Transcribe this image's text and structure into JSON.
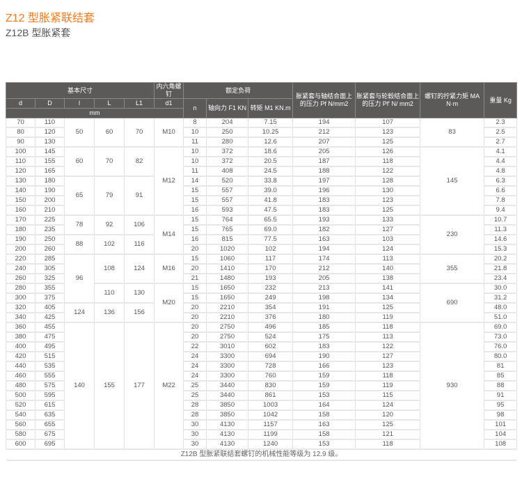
{
  "title": "Z12 型胀紧联结套",
  "subtitle": "Z12B 型胀紧套",
  "header": {
    "basic": "基本尺寸",
    "bolt": "内六角螺钉",
    "load": "额定负荷",
    "pf": "胀紧套与轴结合面上的压力 Pf N/mm2",
    "pf2": "胀紧套与轮毂结合面上的压力 Pf' N/ mm2",
    "ma": "螺钉的拧紧力矩 MA N·m",
    "weight": "重量 Kg",
    "d": "d",
    "D": "D",
    "l": "l",
    "L": "L",
    "L1": "L1",
    "d1": "d1",
    "n": "n",
    "f1": "轴向力 F1 KN",
    "m1": "转矩 M1 KN.m",
    "mm": "mm"
  },
  "rows": [
    [
      "70",
      "110",
      "8",
      "204",
      "7.15",
      "194",
      "107",
      "2.3"
    ],
    [
      "80",
      "120",
      "10",
      "250",
      "10.25",
      "212",
      "123",
      "2.5"
    ],
    [
      "90",
      "130",
      "11",
      "280",
      "12.6",
      "207",
      "125",
      "2.7"
    ],
    [
      "100",
      "145",
      "10",
      "372",
      "18.6",
      "205",
      "126",
      "4.1"
    ],
    [
      "110",
      "155",
      "10",
      "372",
      "20.5",
      "187",
      "118",
      "4.4"
    ],
    [
      "120",
      "165",
      "11",
      "408",
      "24.5",
      "188",
      "122",
      "4.8"
    ],
    [
      "130",
      "180",
      "14",
      "520",
      "33.8",
      "197",
      "128",
      "6.3"
    ],
    [
      "140",
      "190",
      "15",
      "557",
      "39.0",
      "196",
      "130",
      "6.6"
    ],
    [
      "150",
      "200",
      "15",
      "557",
      "41.8",
      "183",
      "123",
      "7.8"
    ],
    [
      "160",
      "210",
      "16",
      "593",
      "47.5",
      "183",
      "125",
      "9.4"
    ],
    [
      "170",
      "225",
      "15",
      "764",
      "65.5",
      "193",
      "133",
      "10.7"
    ],
    [
      "180",
      "235",
      "15",
      "765",
      "69.0",
      "182",
      "127",
      "11.3"
    ],
    [
      "190",
      "250",
      "16",
      "815",
      "77.5",
      "163",
      "103",
      "14.6"
    ],
    [
      "200",
      "260",
      "20",
      "1020",
      "102",
      "194",
      "124",
      "15.3"
    ],
    [
      "220",
      "285",
      "15",
      "1060",
      "117",
      "174",
      "113",
      "20.2"
    ],
    [
      "240",
      "305",
      "20",
      "1410",
      "170",
      "212",
      "140",
      "21.8"
    ],
    [
      "260",
      "325",
      "21",
      "1480",
      "193",
      "205",
      "138",
      "23.4"
    ],
    [
      "280",
      "355",
      "15",
      "1650",
      "232",
      "213",
      "141",
      "30.0"
    ],
    [
      "300",
      "375",
      "15",
      "1650",
      "249",
      "198",
      "134",
      "31.2"
    ],
    [
      "320",
      "405",
      "20",
      "2210",
      "354",
      "191",
      "125",
      "48.0"
    ],
    [
      "340",
      "425",
      "20",
      "2210",
      "376",
      "180",
      "119",
      "51.0"
    ],
    [
      "360",
      "455",
      "20",
      "2750",
      "496",
      "185",
      "118",
      "69.0"
    ],
    [
      "380",
      "475",
      "20",
      "2750",
      "524",
      "175",
      "113",
      "73.0"
    ],
    [
      "400",
      "495",
      "22",
      "3010",
      "602",
      "183",
      "122",
      "76.0"
    ],
    [
      "420",
      "515",
      "24",
      "3300",
      "694",
      "190",
      "127",
      "80.0"
    ],
    [
      "440",
      "535",
      "24",
      "3300",
      "728",
      "166",
      "123",
      "81"
    ],
    [
      "460",
      "555",
      "24",
      "3300",
      "760",
      "159",
      "118",
      "85"
    ],
    [
      "480",
      "575",
      "25",
      "3440",
      "830",
      "159",
      "119",
      "88"
    ],
    [
      "500",
      "595",
      "25",
      "3440",
      "861",
      "153",
      "115",
      "91"
    ],
    [
      "520",
      "615",
      "28",
      "3850",
      "1003",
      "164",
      "124",
      "95"
    ],
    [
      "540",
      "635",
      "28",
      "3850",
      "1042",
      "158",
      "120",
      "98"
    ],
    [
      "560",
      "655",
      "30",
      "4130",
      "1157",
      "163",
      "125",
      "101"
    ],
    [
      "580",
      "675",
      "30",
      "4130",
      "1199",
      "158",
      "121",
      "104"
    ],
    [
      "600",
      "695",
      "30",
      "4130",
      "1240",
      "153",
      "118",
      "108"
    ]
  ],
  "groups": {
    "l": [
      [
        "50",
        3
      ],
      [
        "60",
        3
      ],
      [
        "65",
        4
      ],
      [
        "78",
        2
      ],
      [
        "88",
        2
      ],
      [
        "96",
        5
      ],
      [
        "124",
        2
      ],
      [
        "140",
        13
      ]
    ],
    "L": [
      [
        "60",
        3
      ],
      [
        "70",
        3
      ],
      [
        "79",
        4
      ],
      [
        "92",
        2
      ],
      [
        "102",
        2
      ],
      [
        "108",
        3
      ],
      [
        "110",
        2
      ],
      [
        "136",
        2
      ],
      [
        "155",
        13
      ]
    ],
    "L1": [
      [
        "70",
        3
      ],
      [
        "82",
        3
      ],
      [
        "91",
        4
      ],
      [
        "106",
        2
      ],
      [
        "116",
        2
      ],
      [
        "124",
        3
      ],
      [
        "130",
        2
      ],
      [
        "156",
        2
      ],
      [
        "177",
        13
      ]
    ],
    "d1": [
      [
        "M10",
        3
      ],
      [
        "M12",
        7
      ],
      [
        "M14",
        4
      ],
      [
        "M16",
        3
      ],
      [
        "M20",
        4
      ],
      [
        "M22",
        13
      ]
    ],
    "ma": [
      [
        "83",
        3
      ],
      [
        "145",
        7
      ],
      [
        "230",
        4
      ],
      [
        "355",
        3
      ],
      [
        "690",
        4
      ],
      [
        "930",
        13
      ]
    ]
  },
  "footnote": "Z12B 型胀紧联结套螺钉的机械性能等级为 12.9 级。"
}
